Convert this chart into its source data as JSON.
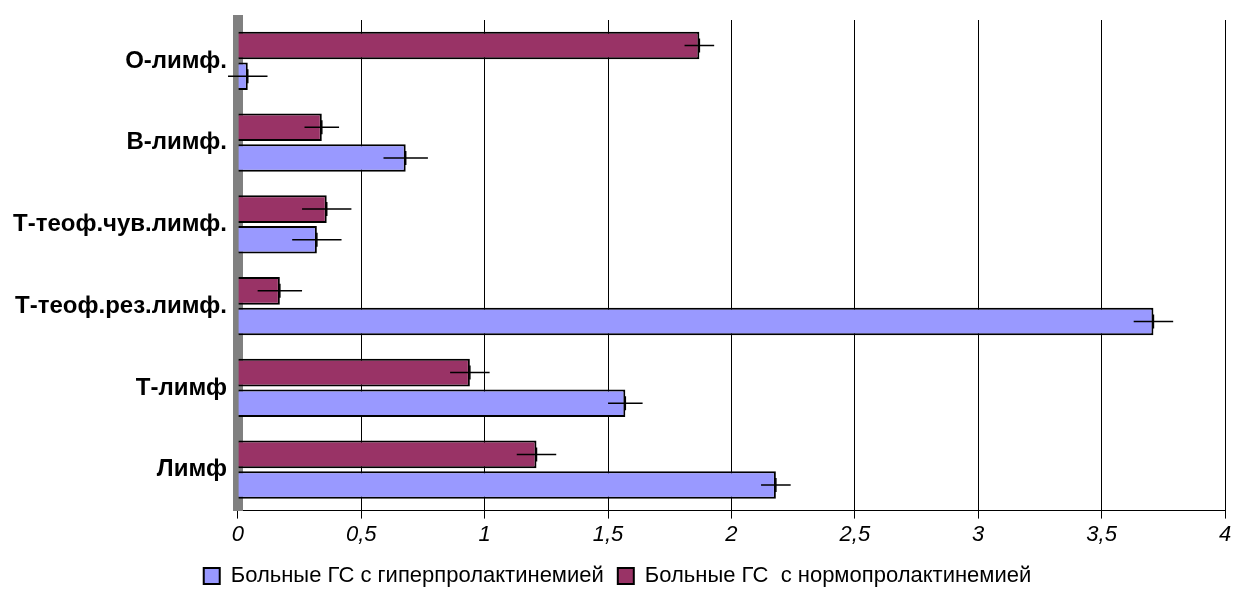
{
  "chart_data": {
    "type": "bar",
    "orientation": "horizontal",
    "categories": [
      "О-лимф.",
      "В-лимф.",
      "Т-теоф.чув.лимф.",
      "Т-теоф.рез.лимф.",
      "Т-лимф",
      "Лимф"
    ],
    "series": [
      {
        "name": "Больные ГС с гиперпролактинемией",
        "color": "#9999ff",
        "values": [
          0.04,
          0.68,
          0.32,
          3.71,
          1.57,
          2.18
        ],
        "errors": [
          0.08,
          0.09,
          0.1,
          0.08,
          0.07,
          0.06
        ]
      },
      {
        "name": "Больные ГС  с нормопролактинемией",
        "color": "#993366",
        "values": [
          1.87,
          0.34,
          0.36,
          0.17,
          0.94,
          1.21
        ],
        "errors": [
          0.06,
          0.07,
          0.1,
          0.09,
          0.08,
          0.08
        ]
      }
    ],
    "xlim": [
      0,
      4
    ],
    "xticks": [
      0,
      {
        "value": 0.5,
        "label": "0,5"
      },
      1,
      {
        "value": 1.5,
        "label": "1,5"
      },
      2,
      {
        "value": 2.5,
        "label": "2,5"
      },
      3,
      {
        "value": 3.5,
        "label": "3,5"
      },
      4
    ],
    "grid": "x",
    "legend": "bottom"
  }
}
